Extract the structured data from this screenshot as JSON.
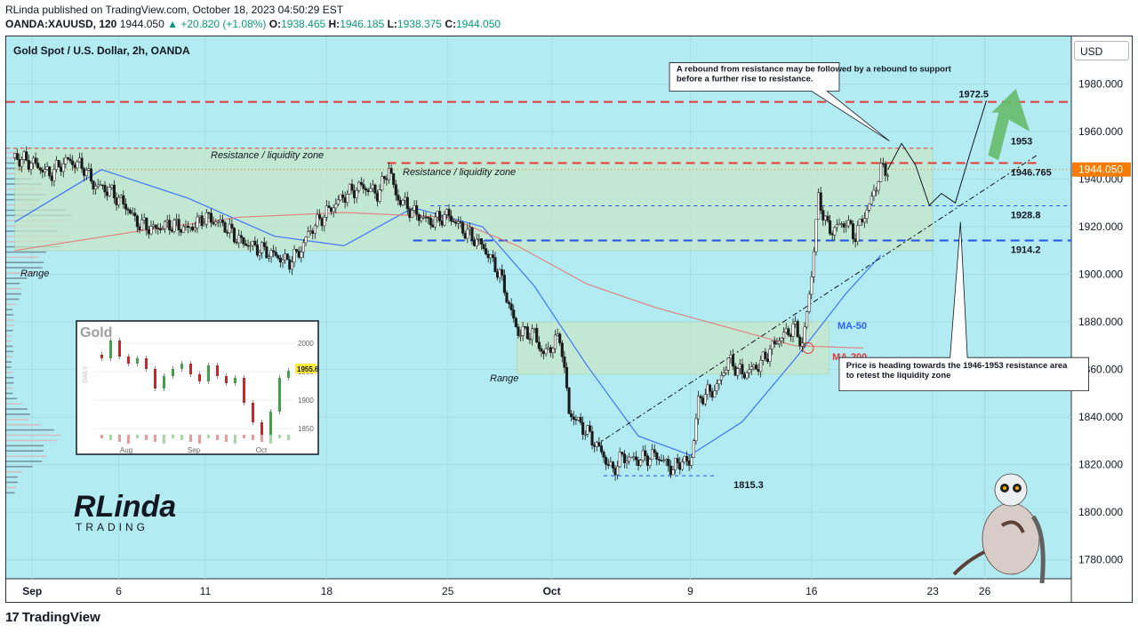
{
  "header": {
    "publisher_line": "RLinda published on TradingView.com, October 18, 2023 04:50:29 EST",
    "symbol": "OANDA:XAUUSD, 120",
    "last": "1944.050",
    "change": "+20.820 (+1.08%)",
    "open_label": "O:",
    "open": "1938.465",
    "high_label": "H:",
    "high": "1946.185",
    "low_label": "L:",
    "low": "1938.375",
    "close_label": "C:",
    "close": "1944.050"
  },
  "currency_button": "USD",
  "footer_logo": "TradingView",
  "brand": {
    "name": "RLinda",
    "sub": "TRADING"
  },
  "chart_data": {
    "type": "candlestick",
    "title": "Gold Spot / U.S. Dollar, 2h, OANDA",
    "y_axis": {
      "range": [
        1772,
        2000
      ],
      "ticks": [
        1780,
        1800,
        1820,
        1840,
        1860,
        1880,
        1900,
        1920,
        1940,
        1960,
        1980
      ],
      "tick_labels": [
        "1780.000",
        "1800.000",
        "1820.000",
        "1840.000",
        "1860.000",
        "1880.000",
        "1900.000",
        "1920.000",
        "1940.000",
        "1960.000",
        "1980.000"
      ],
      "position": "right"
    },
    "x_axis": {
      "tick_labels": [
        "Sep",
        "6",
        "11",
        "18",
        "25",
        "Oct",
        "9",
        "16",
        "23",
        "26"
      ],
      "tick_days": [
        0,
        5,
        10,
        17,
        24,
        30,
        38,
        45,
        52,
        55
      ],
      "range_days": [
        -1.5,
        60
      ]
    },
    "last_price": {
      "value": 1944.05,
      "label": "1944.050",
      "color": "#f57c00"
    },
    "price_path": [
      [
        -1.0,
        1949
      ],
      [
        0.0,
        1947
      ],
      [
        1.0,
        1942
      ],
      [
        2.0,
        1948
      ],
      [
        3.0,
        1945
      ],
      [
        3.5,
        1938
      ],
      [
        4.5,
        1935
      ],
      [
        5.5,
        1928
      ],
      [
        6.0,
        1922
      ],
      [
        7.0,
        1919
      ],
      [
        8.0,
        1921
      ],
      [
        9.0,
        1919
      ],
      [
        10.0,
        1924
      ],
      [
        11.0,
        1921
      ],
      [
        12.0,
        1914
      ],
      [
        13.0,
        1911
      ],
      [
        14.0,
        1908
      ],
      [
        14.8,
        1905
      ],
      [
        15.5,
        1910
      ],
      [
        16.0,
        1918
      ],
      [
        17.0,
        1926
      ],
      [
        18.0,
        1933
      ],
      [
        19.0,
        1937
      ],
      [
        20.0,
        1934
      ],
      [
        20.6,
        1945
      ],
      [
        21.0,
        1933
      ],
      [
        22.0,
        1926
      ],
      [
        23.0,
        1922
      ],
      [
        24.0,
        1925
      ],
      [
        25.0,
        1918
      ],
      [
        26.0,
        1912
      ],
      [
        27.0,
        1900
      ],
      [
        27.5,
        1888
      ],
      [
        28.0,
        1876
      ],
      [
        29.0,
        1875
      ],
      [
        29.5,
        1866
      ],
      [
        30.5,
        1874
      ],
      [
        31.0,
        1842
      ],
      [
        32.0,
        1834
      ],
      [
        32.8,
        1826
      ],
      [
        33.5,
        1817
      ],
      [
        34.0,
        1823
      ],
      [
        35.0,
        1822
      ],
      [
        36.0,
        1824
      ],
      [
        37.0,
        1818
      ],
      [
        37.5,
        1822
      ],
      [
        38.0,
        1820
      ],
      [
        38.5,
        1848
      ],
      [
        39.5,
        1852
      ],
      [
        40.2,
        1864
      ],
      [
        41.0,
        1858
      ],
      [
        42.0,
        1862
      ],
      [
        43.0,
        1872
      ],
      [
        44.0,
        1878
      ],
      [
        44.5,
        1870
      ],
      [
        45.0,
        1900
      ],
      [
        45.4,
        1932
      ],
      [
        46.0,
        1918
      ],
      [
        47.0,
        1922
      ],
      [
        47.5,
        1916
      ],
      [
        48.0,
        1924
      ],
      [
        48.5,
        1932
      ],
      [
        49.0,
        1944
      ],
      [
        49.4,
        1944
      ]
    ],
    "levels": [
      {
        "value": 1972.5,
        "label": "1972.5",
        "style": "dashed",
        "color": "#e53935"
      },
      {
        "value": 1953,
        "label": "1953",
        "style": "dashed",
        "color": "#e53935"
      },
      {
        "value": 1946.765,
        "label": "1946.765",
        "style": "dashed",
        "color": "#e53935"
      },
      {
        "value": 1928.8,
        "label": "1928.8",
        "style": "dashed",
        "color": "#1e53e5"
      },
      {
        "value": 1914.2,
        "label": "1914.2",
        "style": "dashed",
        "color": "#1e53e5"
      },
      {
        "value": 1815.3,
        "label": "1815.3",
        "style": "dashed",
        "color": "#1e53e5"
      }
    ],
    "zones": [
      {
        "x": [
          -1,
          52
        ],
        "y": [
          1910,
          1953
        ],
        "label": "Resistance / liquidity zone",
        "color": "#c8e6c9"
      },
      {
        "x": [
          28,
          46
        ],
        "y": [
          1858,
          1880
        ],
        "label": "Range",
        "color": "#c8e6c9"
      }
    ],
    "zone_labels": [
      "Resistance / liquidity zone",
      "Resistance / liquidity zone",
      "Range",
      "Range"
    ],
    "moving_averages": [
      {
        "name": "MA-50",
        "color": "#2962ff",
        "path": [
          [
            -1,
            1922
          ],
          [
            4,
            1944
          ],
          [
            9,
            1932
          ],
          [
            14,
            1916
          ],
          [
            18,
            1912
          ],
          [
            22,
            1928
          ],
          [
            26,
            1920
          ],
          [
            29,
            1895
          ],
          [
            32,
            1862
          ],
          [
            35,
            1832
          ],
          [
            38,
            1824
          ],
          [
            41,
            1838
          ],
          [
            44,
            1864
          ],
          [
            47,
            1892
          ],
          [
            49,
            1908
          ]
        ]
      },
      {
        "name": "MA-200",
        "color": "#e57373",
        "path": [
          [
            -1,
            1910
          ],
          [
            6,
            1918
          ],
          [
            12,
            1924
          ],
          [
            18,
            1926
          ],
          [
            24,
            1924
          ],
          [
            28,
            1912
          ],
          [
            32,
            1896
          ],
          [
            36,
            1886
          ],
          [
            40,
            1878
          ],
          [
            44,
            1870
          ],
          [
            48,
            1869
          ]
        ]
      }
    ],
    "trendline": [
      [
        32.5,
        1828
      ],
      [
        58,
        1950
      ]
    ],
    "annotations": [
      {
        "text": "A rebound from resistance may be followed by a rebound to support before a further rise to resistance."
      },
      {
        "text": "Price is heading towards the 1946-1953 resistance area to retest the liquidity zone"
      }
    ],
    "inset": {
      "title": "Gold",
      "side_label": "DAILY",
      "y_ticks": [
        "2000",
        "1950",
        "1900",
        "1850"
      ],
      "x_ticks": [
        "Aug",
        "Sep",
        "Oct"
      ],
      "last_label": "1955.6"
    },
    "grid": true,
    "background": "#b2ebf2"
  }
}
